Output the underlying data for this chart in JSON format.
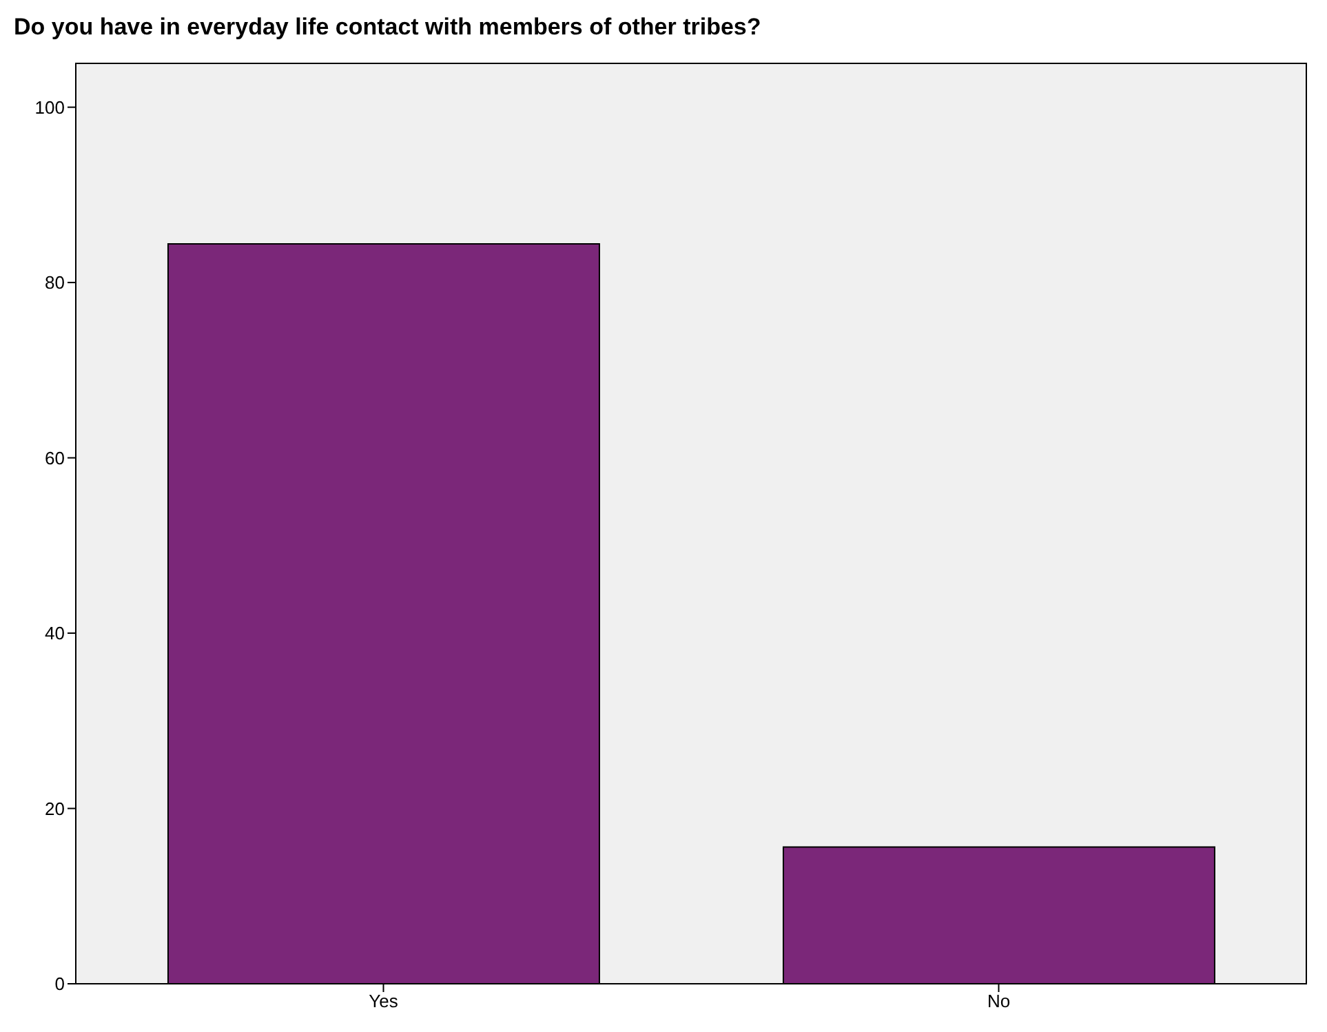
{
  "chart_data": {
    "type": "bar",
    "title": "Do you have in everyday life contact with members of other tribes?",
    "categories": [
      "Yes",
      "No"
    ],
    "values": [
      84.4,
      15.6
    ],
    "color": "#7b2779",
    "ylim": [
      0,
      105
    ],
    "yticks": [
      0,
      20,
      40,
      60,
      80,
      100
    ]
  }
}
